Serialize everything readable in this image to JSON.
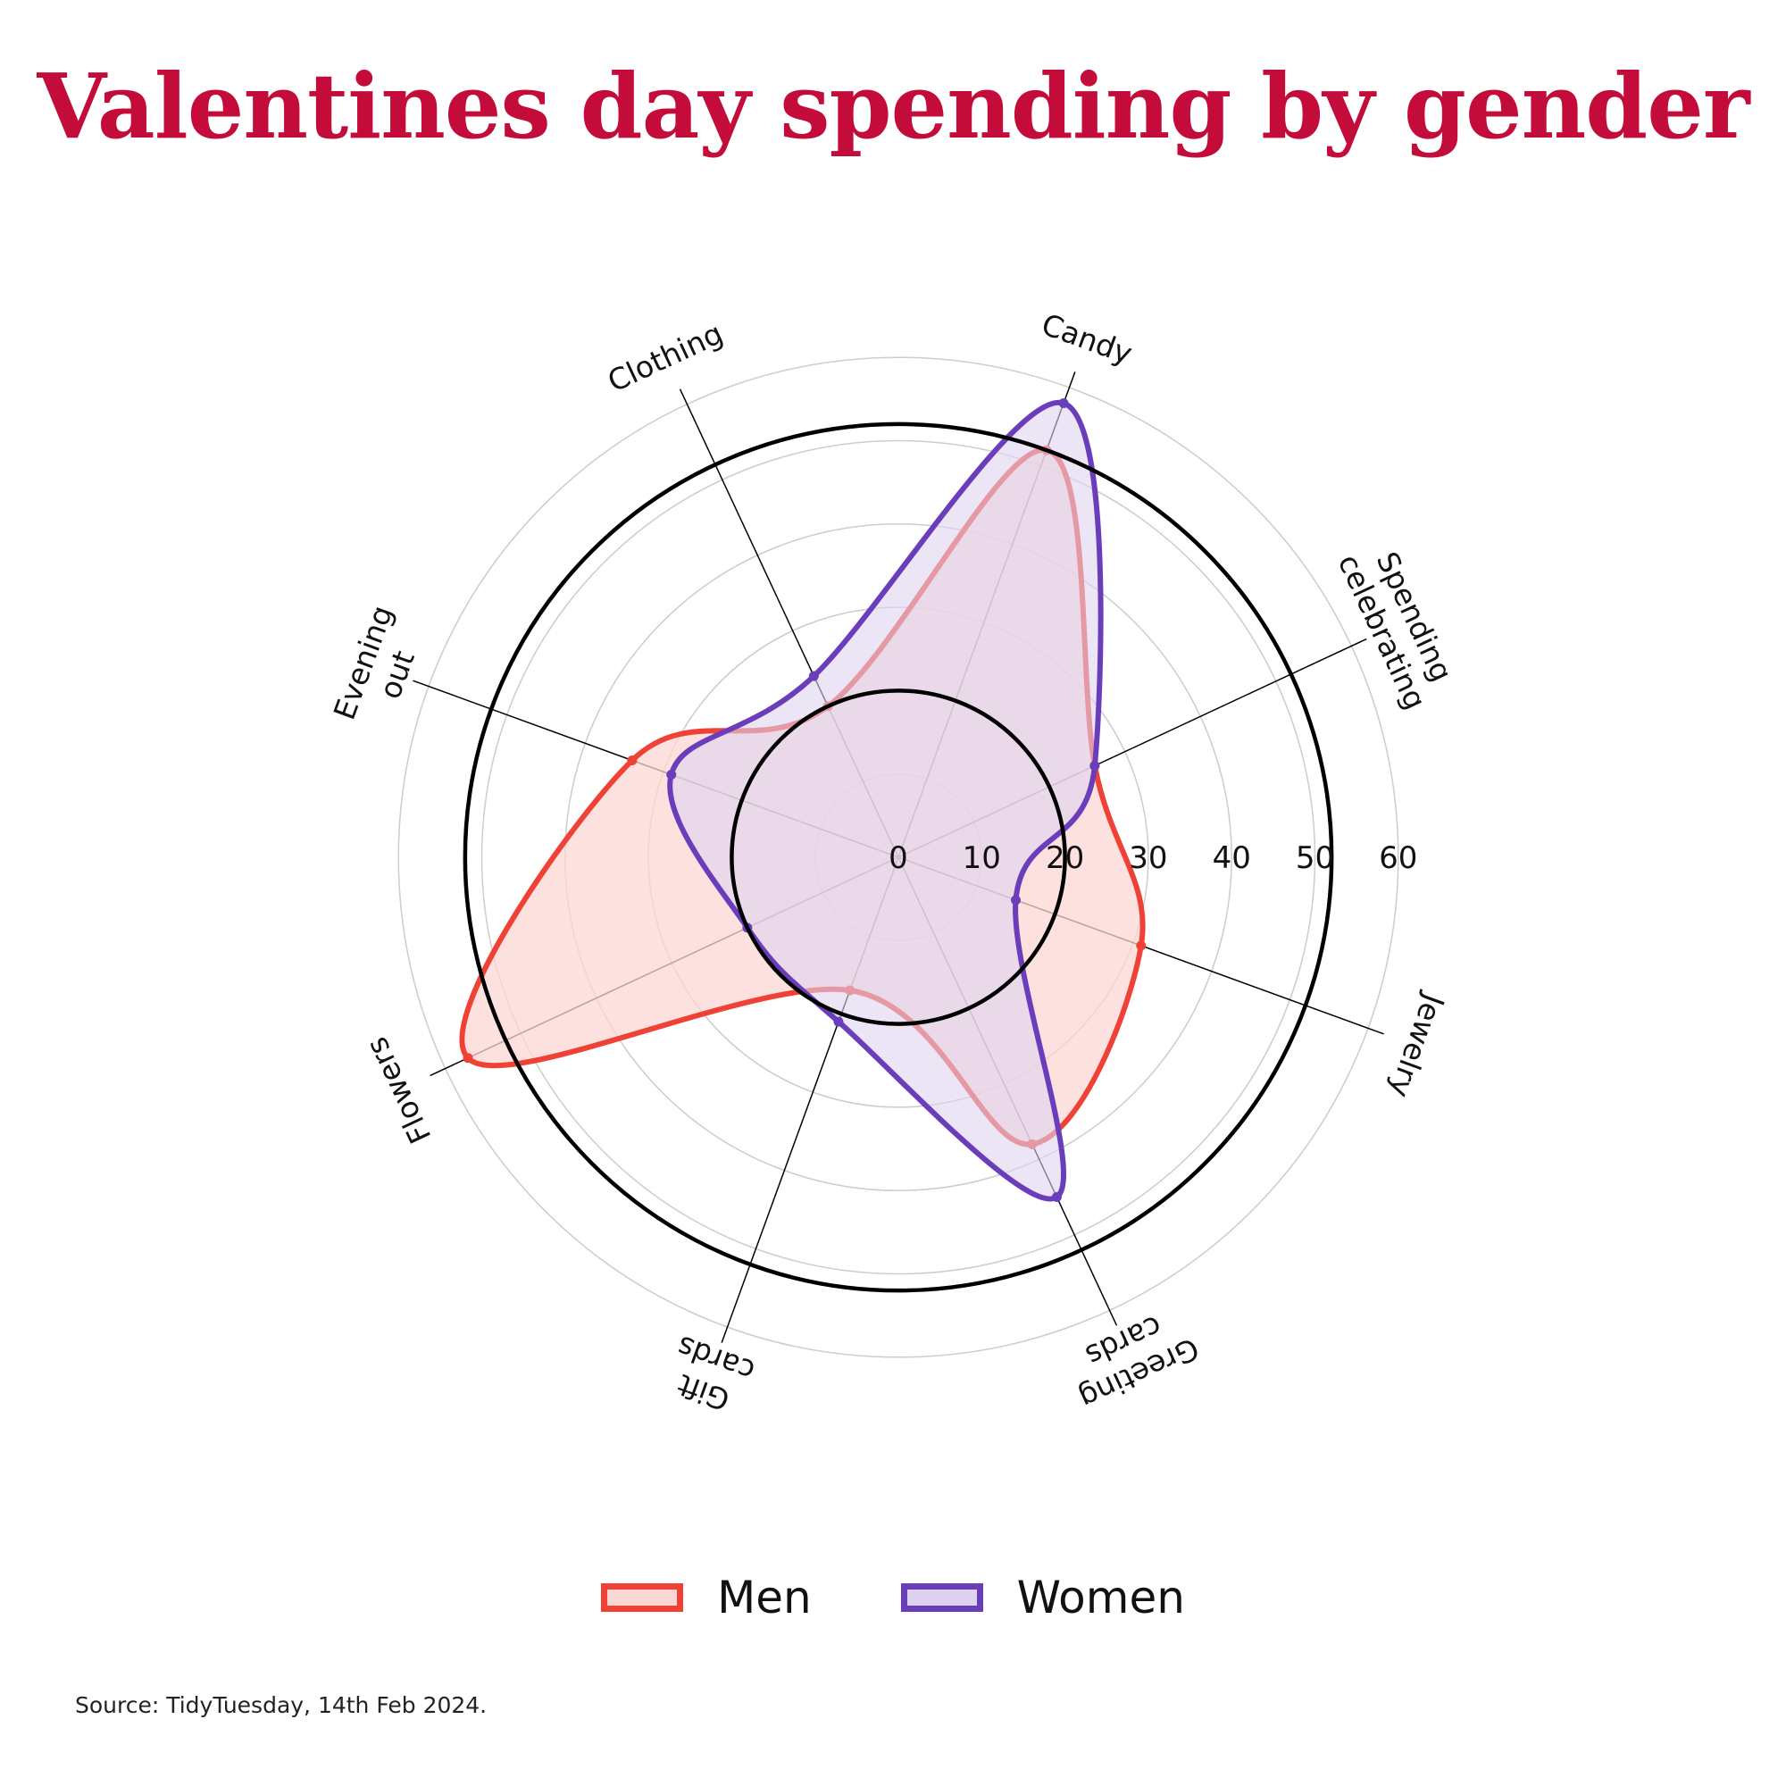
{
  "title": "Valentines day spending by gender",
  "source": "Source: TidyTuesday, 14th Feb 2024.",
  "colors": {
    "title": "#c40c3a",
    "men_line": "#ef4136",
    "men_fill": "#fbd7d3",
    "women_line": "#6a3dbb",
    "women_fill": "#ddd3f0"
  },
  "chart_data": {
    "type": "radar",
    "categories": [
      "Candy",
      "Spending celebrating",
      "Jewelry",
      "Greeting cards",
      "Gift cards",
      "Flowers",
      "Evening out",
      "Clothing"
    ],
    "category_lines": [
      [
        "Candy"
      ],
      [
        "Spending",
        "celebrating"
      ],
      [
        "Jewelry"
      ],
      [
        "Greeting",
        "cards"
      ],
      [
        "Gift",
        "cards"
      ],
      [
        "Flowers"
      ],
      [
        "Evening",
        "out"
      ],
      [
        "Clothing"
      ]
    ],
    "r_ticks": [
      "0",
      "10",
      "20",
      "30",
      "40",
      "50",
      "60"
    ],
    "r_range": [
      0,
      60
    ],
    "reference_circles": [
      20,
      52
    ],
    "series": [
      {
        "name": "Men",
        "values": [
          52,
          26,
          31,
          38,
          17,
          57,
          34,
          20
        ]
      },
      {
        "name": "Women",
        "values": [
          58,
          26,
          15,
          45,
          21,
          20,
          29,
          24
        ]
      }
    ],
    "legend": "bottom"
  }
}
